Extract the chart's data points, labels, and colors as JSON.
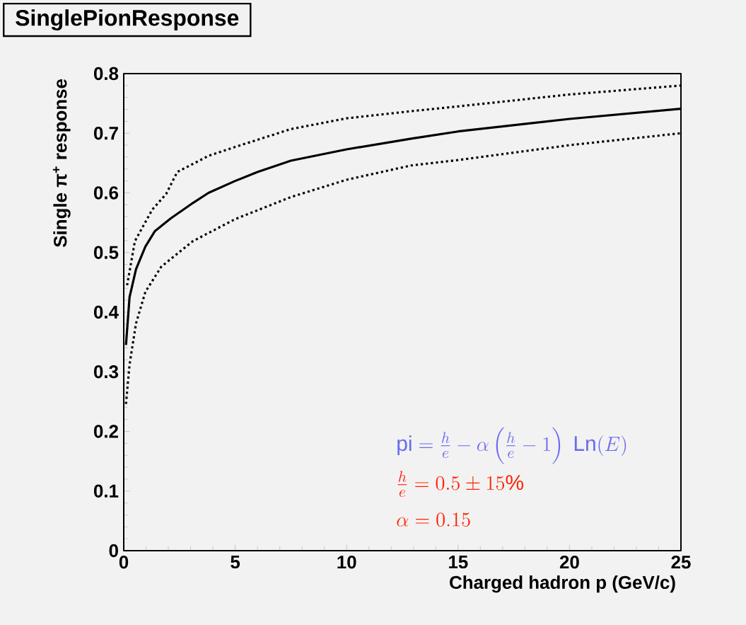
{
  "chart_data": {
    "type": "line",
    "title": "SinglePionResponse",
    "xlabel": "Charged hadron p (GeV/c)",
    "ylabel": "Single π$^{+}$ response",
    "xlim": [
      0,
      25
    ],
    "ylim": [
      0,
      0.8
    ],
    "xticks": [
      0,
      5,
      10,
      15,
      20,
      25
    ],
    "yticks": [
      0,
      0.1,
      0.2,
      0.3,
      0.4,
      0.5,
      0.6,
      0.7,
      0.8
    ],
    "marker": "none",
    "grid": false,
    "series": [
      {
        "color": "#000000",
        "line_style": "dotted",
        "x": [
          0.15,
          0.5,
          1.28,
          1.9,
          2.4,
          3.8,
          5,
          7.5,
          10,
          12.9,
          15,
          20,
          25
        ],
        "values": [
          0.445,
          0.519,
          0.572,
          0.598,
          0.635,
          0.662,
          0.677,
          0.707,
          0.725,
          0.737,
          0.745,
          0.765,
          0.78
        ]
      },
      {
        "color": "#000000",
        "line_style": "solid",
        "x": [
          0.1,
          0.26,
          0.55,
          0.97,
          1.4,
          2.1,
          3.1,
          3.8,
          5,
          6,
          7.5,
          10,
          12.9,
          15,
          20,
          25
        ],
        "values": [
          0.345,
          0.425,
          0.472,
          0.51,
          0.536,
          0.557,
          0.583,
          0.6,
          0.62,
          0.635,
          0.654,
          0.673,
          0.691,
          0.703,
          0.724,
          0.741
        ]
      },
      {
        "color": "#000000",
        "line_style": "dotted",
        "x": [
          0.1,
          0.26,
          0.55,
          0.97,
          1.68,
          3.1,
          5,
          7.5,
          10,
          12.9,
          15,
          20,
          25
        ],
        "values": [
          0.246,
          0.312,
          0.381,
          0.434,
          0.476,
          0.519,
          0.556,
          0.593,
          0.622,
          0.646,
          0.655,
          0.68,
          0.7
        ]
      }
    ],
    "annotations": [
      "\\mathrm{pi} = \\frac{h}{e} - \\alpha\\left(\\frac{h}{e}-1\\right)\\ \\mathrm{Ln}(E)",
      "\\frac{h}{e} = 0.5 \\pm 15\\%",
      "\\alpha = 0.15"
    ]
  }
}
